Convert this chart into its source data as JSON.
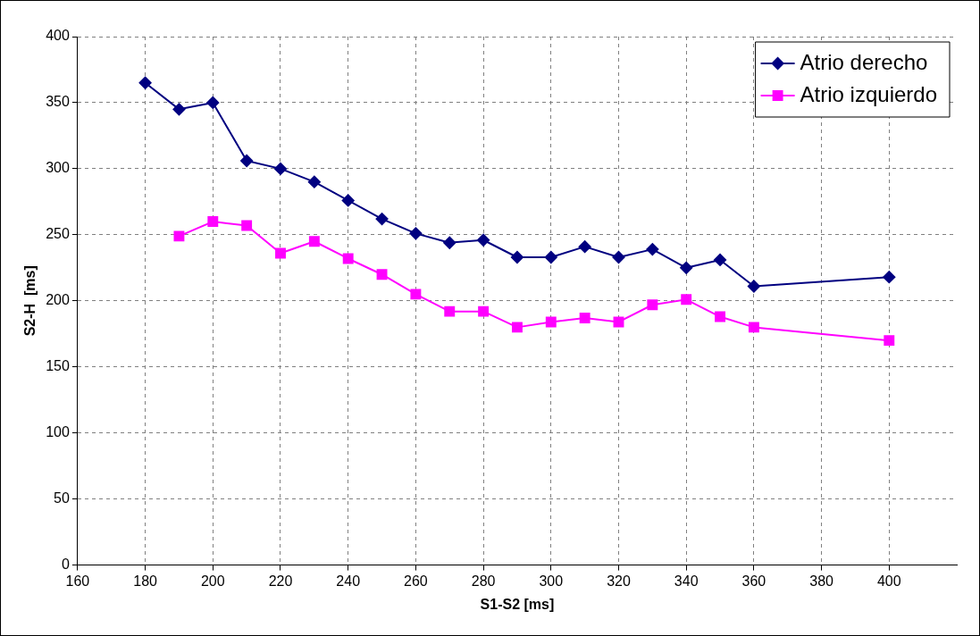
{
  "chart_data": {
    "type": "line",
    "xlabel": "S1-S2 [ms]",
    "ylabel": "S2-H  [ms]",
    "xlim": [
      160,
      420
    ],
    "xticks": [
      160,
      180,
      200,
      220,
      240,
      260,
      280,
      300,
      320,
      340,
      360,
      380,
      400
    ],
    "ylim": [
      0,
      400
    ],
    "yticks": [
      0,
      50,
      100,
      150,
      200,
      250,
      300,
      350,
      400
    ],
    "grid": true,
    "legend": "top right",
    "line_style": "solid",
    "series": [
      {
        "name": "Atrio derecho",
        "color": "#000080",
        "marker": "diamond",
        "x": [
          180,
          190,
          200,
          210,
          220,
          230,
          240,
          250,
          260,
          270,
          280,
          290,
          300,
          310,
          320,
          330,
          340,
          350,
          360,
          400
        ],
        "values": [
          365,
          345,
          350,
          306,
          300,
          290,
          276,
          262,
          251,
          244,
          246,
          233,
          233,
          241,
          233,
          239,
          225,
          231,
          211,
          218
        ]
      },
      {
        "name": "Atrio izquierdo",
        "color": "#ff00ff",
        "marker": "square",
        "x": [
          190,
          200,
          210,
          220,
          230,
          240,
          250,
          260,
          270,
          280,
          290,
          300,
          310,
          320,
          330,
          340,
          350,
          360,
          400
        ],
        "values": [
          249,
          260,
          257,
          236,
          245,
          232,
          220,
          205,
          192,
          192,
          180,
          184,
          187,
          184,
          197,
          201,
          188,
          180,
          170
        ]
      }
    ]
  }
}
